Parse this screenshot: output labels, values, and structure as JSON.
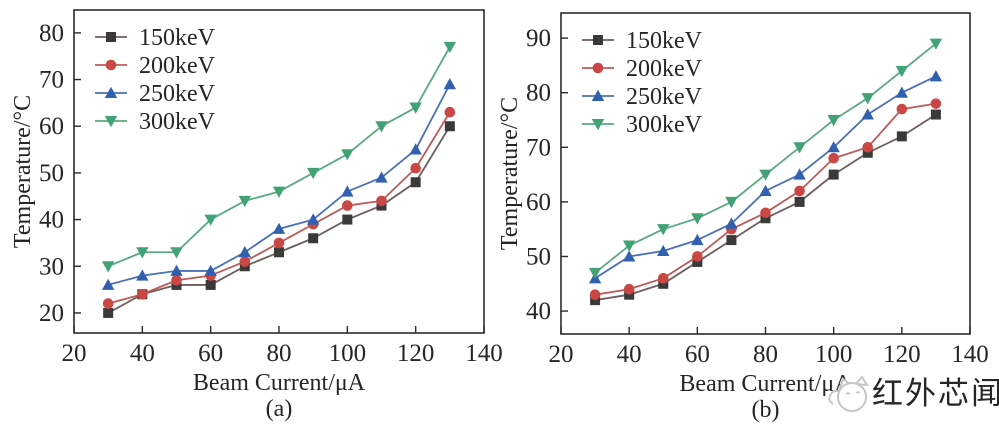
{
  "figure": {
    "watermark": {
      "text": "红外芯闻",
      "icon": "mascot-icon",
      "color": "#c6c6c6"
    }
  },
  "chart_data": [
    {
      "type": "line",
      "panel_caption": "(a)",
      "xlabel": "Beam Current/μA",
      "ylabel": "Temperature/°C",
      "xlim": [
        20,
        140
      ],
      "ylim": [
        15.7,
        84.9
      ],
      "x_ticks": [
        20,
        40,
        60,
        80,
        100,
        120,
        140
      ],
      "y_ticks": [
        20,
        30,
        40,
        50,
        60,
        70,
        80
      ],
      "grid": false,
      "legend_position": "top-left",
      "x": [
        30,
        40,
        50,
        60,
        70,
        80,
        90,
        100,
        110,
        120,
        130
      ],
      "series": [
        {
          "name": "150keV",
          "marker": "square",
          "color": "#3a3a3a",
          "line_color": "#6e5d5a",
          "values": [
            20,
            24,
            26,
            26,
            30,
            33,
            36,
            40,
            43,
            48,
            60
          ]
        },
        {
          "name": "200keV",
          "marker": "circle",
          "color": "#c94845",
          "line_color": "#bd5a57",
          "values": [
            22,
            24,
            27,
            28,
            31,
            35,
            39,
            43,
            44,
            51,
            63
          ]
        },
        {
          "name": "250keV",
          "marker": "triangle-up",
          "color": "#3160af",
          "line_color": "#4a70b5",
          "values": [
            26,
            28,
            29,
            29,
            33,
            38,
            40,
            46,
            49,
            55,
            69
          ]
        },
        {
          "name": "300keV",
          "marker": "triangle-down",
          "color": "#42a175",
          "line_color": "#5aa985",
          "values": [
            30,
            33,
            33,
            40,
            44,
            46,
            50,
            54,
            60,
            64,
            77
          ]
        }
      ]
    },
    {
      "type": "line",
      "panel_caption": "(b)",
      "xlabel": "Beam Current/μA",
      "ylabel": "Temperature/°C",
      "xlim": [
        20,
        140
      ],
      "ylim": [
        35.8,
        94.6
      ],
      "x_ticks": [
        20,
        40,
        60,
        80,
        100,
        120,
        140
      ],
      "y_ticks": [
        40,
        50,
        60,
        70,
        80,
        90
      ],
      "grid": false,
      "legend_position": "top-left",
      "x": [
        30,
        40,
        50,
        60,
        70,
        80,
        90,
        100,
        110,
        120,
        130
      ],
      "series": [
        {
          "name": "150keV",
          "marker": "square",
          "color": "#3a3a3a",
          "line_color": "#6e5d5a",
          "values": [
            42,
            43,
            45,
            49,
            53,
            57,
            60,
            65,
            69,
            72,
            76
          ]
        },
        {
          "name": "200keV",
          "marker": "circle",
          "color": "#c94845",
          "line_color": "#bd5a57",
          "values": [
            43,
            44,
            46,
            50,
            55,
            58,
            62,
            68,
            70,
            77,
            78
          ]
        },
        {
          "name": "250keV",
          "marker": "triangle-up",
          "color": "#3160af",
          "line_color": "#4a70b5",
          "values": [
            46,
            50,
            51,
            53,
            56,
            62,
            65,
            70,
            76,
            80,
            83
          ]
        },
        {
          "name": "300keV",
          "marker": "triangle-down",
          "color": "#42a175",
          "line_color": "#5aa985",
          "values": [
            47,
            52,
            55,
            57,
            60,
            65,
            70,
            75,
            79,
            84,
            89
          ]
        }
      ]
    }
  ]
}
